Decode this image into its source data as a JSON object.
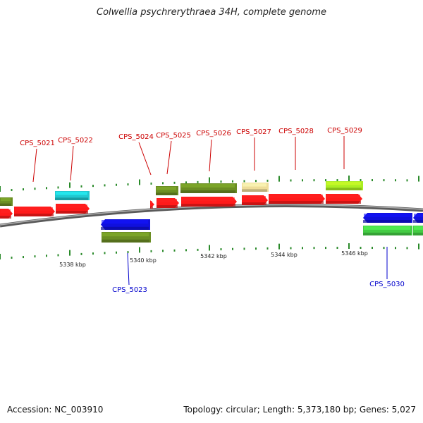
{
  "title": "Colwellia psychrerythraea 34H, complete genome",
  "footer": {
    "accession": "Accession: NC_003910",
    "summary": "Topology: circular; Length: 5,373,180 bp; Genes: 5,027"
  },
  "colors": {
    "backbone": "#808080",
    "tick": "#2a8a2a",
    "label_forward": "#cc0000",
    "label_reverse": "#0000cc"
  },
  "ruler": {
    "ticks": [
      "5338 kbp",
      "5340 kbp",
      "5342 kbp",
      "5344 kbp",
      "5346 kbp"
    ]
  },
  "genes": [
    {
      "name": "CPS_5021",
      "strand": "+",
      "color": "#ff1a1a"
    },
    {
      "name": "CPS_5022",
      "strand": "+",
      "color": "#ff1a1a"
    },
    {
      "name": "CPS_5023",
      "strand": "-",
      "color": "#1010dd"
    },
    {
      "name": "CPS_5024",
      "strand": "+",
      "color": "#ff1a1a"
    },
    {
      "name": "CPS_5025",
      "strand": "+",
      "color": "#ff1a1a"
    },
    {
      "name": "CPS_5026",
      "strand": "+",
      "color": "#ff1a1a"
    },
    {
      "name": "CPS_5027",
      "strand": "+",
      "color": "#ff1a1a"
    },
    {
      "name": "CPS_5028",
      "strand": "+",
      "color": "#ff1a1a"
    },
    {
      "name": "CPS_5029",
      "strand": "+",
      "color": "#ff1a1a"
    },
    {
      "name": "CPS_5030",
      "strand": "-",
      "color": "#1010dd"
    }
  ]
}
